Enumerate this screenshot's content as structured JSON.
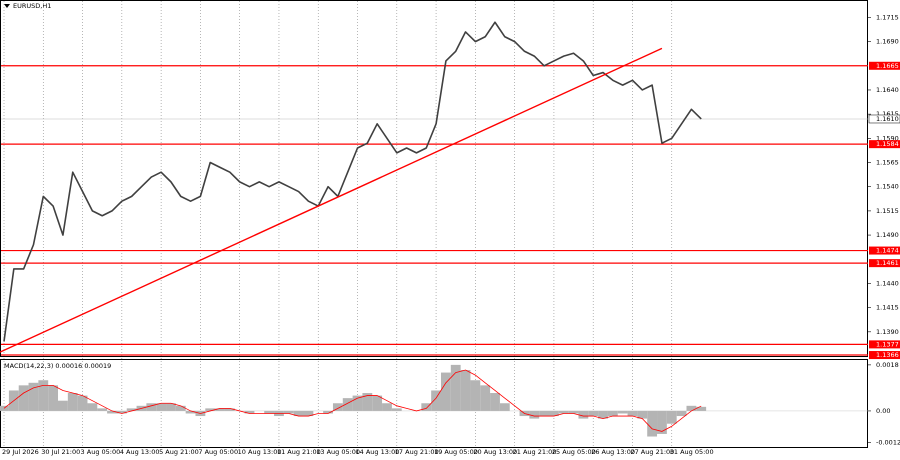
{
  "chart_data": [
    {
      "type": "line",
      "title": "EURUSD,H1",
      "categories": [
        "29 Jul 2026",
        null,
        null,
        null,
        "30 Jul 21:00",
        null,
        null,
        null,
        "3 Aug 05:00",
        null,
        null,
        null,
        "4 Aug 13:00",
        null,
        null,
        null,
        "5 Aug 21:00",
        null,
        null,
        null,
        "7 Aug 05:00",
        null,
        null,
        null,
        "10 Aug 13:00",
        null,
        null,
        null,
        "11 Aug 21:00",
        null,
        null,
        null,
        "13 Aug 05:00",
        null,
        null,
        null,
        "14 Aug 13:00",
        null,
        null,
        null,
        "17 Aug 21:00",
        null,
        null,
        null,
        "19 Aug 05:00",
        null,
        null,
        null,
        "20 Aug 13:00",
        null,
        null,
        null,
        "21 Aug 21:00",
        null,
        null,
        null,
        "25 Aug 05:00",
        null,
        null,
        null,
        "26 Aug 13:00",
        null,
        null,
        null,
        "27 Aug 21:00",
        null,
        null,
        null,
        "31 Aug 05:00",
        null,
        null,
        null
      ],
      "series": [
        {
          "color": "#404040",
          "values": [
            1.138,
            1.1455,
            1.1455,
            1.148,
            1.153,
            1.152,
            1.149,
            1.1555,
            1.1535,
            1.1515,
            1.151,
            1.1515,
            1.1525,
            1.153,
            1.154,
            1.155,
            1.1555,
            1.1545,
            1.153,
            1.1525,
            1.153,
            1.1565,
            1.156,
            1.1555,
            1.1545,
            1.154,
            1.1545,
            1.154,
            1.1545,
            1.154,
            1.1535,
            1.1525,
            1.152,
            1.154,
            1.153,
            1.1555,
            1.158,
            1.1585,
            1.1605,
            1.159,
            1.1575,
            1.158,
            1.1575,
            1.158,
            1.1605,
            1.167,
            1.168,
            1.17,
            1.169,
            1.1695,
            1.171,
            1.1695,
            1.169,
            1.168,
            1.1675,
            1.1665,
            1.167,
            1.1675,
            1.1678,
            1.167,
            1.1655,
            1.1658,
            1.165,
            1.1645,
            1.165,
            1.164,
            1.1645,
            1.1585,
            1.159,
            1.1605,
            1.162,
            1.161
          ]
        }
      ],
      "ylim": [
        1.1365,
        1.1733
      ],
      "yticks": [
        1.1715,
        {
          "value": 1.169,
          "label": "1.1690"
        },
        {
          "value": 1.164,
          "label": "1.1640"
        },
        1.1615,
        {
          "value": 1.159,
          "label": "1.1590"
        },
        1.1565,
        {
          "value": 1.154,
          "label": "1.1540"
        },
        1.1515,
        {
          "value": 1.149,
          "label": "1.1490"
        },
        {
          "value": 1.144,
          "label": "1.1440"
        },
        1.1415,
        {
          "value": 1.139,
          "label": "1.1390"
        }
      ],
      "levels": [
        1.1665,
        1.1584,
        1.1474,
        1.1461,
        1.1377,
        1.1366
      ],
      "level_color": "#ff0000",
      "last_price": {
        "value": 1.161,
        "label": "1.1610"
      },
      "trendline": {
        "start": 1.1369,
        "end": 1.1683,
        "color": "#ff0000"
      }
    },
    {
      "type": "bar",
      "title": "MACD(14,22,3) 0.00016 0.00019",
      "series": [
        {
          "color": "#b4b4b4",
          "values": [
            0.0002,
            0.0008,
            0.001,
            0.0011,
            0.0012,
            0.001,
            0.0004,
            0.0007,
            0.0006,
            0.0003,
            0.0001,
            -0.0001,
            -0.0001,
            0.0001,
            0.0002,
            0.0003,
            0.0003,
            0.0003,
            0.0002,
            -0.0001,
            -0.0002,
            0.0001,
            0.0001,
            0.0001,
            0,
            -0.0001,
            0,
            -0.0001,
            -0.0002,
            -0.0001,
            -0.0002,
            -0.0002,
            0,
            -0.0001,
            0.0003,
            0.0005,
            0.0006,
            0.0007,
            0.0006,
            0.0003,
            0.0001,
            0,
            0,
            0.0003,
            0.0008,
            0.0015,
            0.0018,
            0.0016,
            0.0012,
            0.001,
            0.0007,
            0.0003,
            0,
            -0.0002,
            -0.0003,
            -0.0002,
            -0.0002,
            -0.0001,
            -0.0001,
            -0.0003,
            -0.0002,
            -0.0003,
            -0.0002,
            -0.0001,
            -0.0002,
            -0.0003,
            -0.001,
            -0.0009,
            -0.0005,
            -0.0002,
            0.0002,
            0.00016
          ]
        },
        {
          "color": "#ff0000",
          "values": [
            0.0001,
            0.0004,
            0.0007,
            0.0009,
            0.001,
            0.001,
            0.0008,
            0.0007,
            0.0006,
            0.0004,
            0.0002,
            0,
            -0.0001,
            0,
            0.0001,
            0.0002,
            0.0003,
            0.0003,
            0.0002,
            0,
            -0.0001,
            0,
            0.0001,
            0.0001,
            0,
            -0.0001,
            -0.0001,
            -0.0001,
            -0.0001,
            -0.0001,
            -0.0002,
            -0.0002,
            -0.0001,
            -0.0001,
            0.0001,
            0.0003,
            0.0005,
            0.0006,
            0.0006,
            0.0004,
            0.0002,
            0.0001,
            0,
            0.0001,
            0.0005,
            0.0011,
            0.0015,
            0.0016,
            0.0014,
            0.0011,
            0.0008,
            0.0005,
            0.0002,
            -0.0001,
            -0.0002,
            -0.0002,
            -0.0002,
            -0.0001,
            -0.0001,
            -0.0002,
            -0.0002,
            -0.0003,
            -0.0002,
            -0.0002,
            -0.0002,
            -0.0003,
            -0.0007,
            -0.0008,
            -0.0006,
            -0.0003,
            0,
            0.00019
          ]
        }
      ],
      "ylim": [
        -0.00141,
        0.00203
      ],
      "yticks": [
        0.0018,
        {
          "value": 0,
          "label": "0.00"
        },
        -0.00123
      ]
    }
  ]
}
